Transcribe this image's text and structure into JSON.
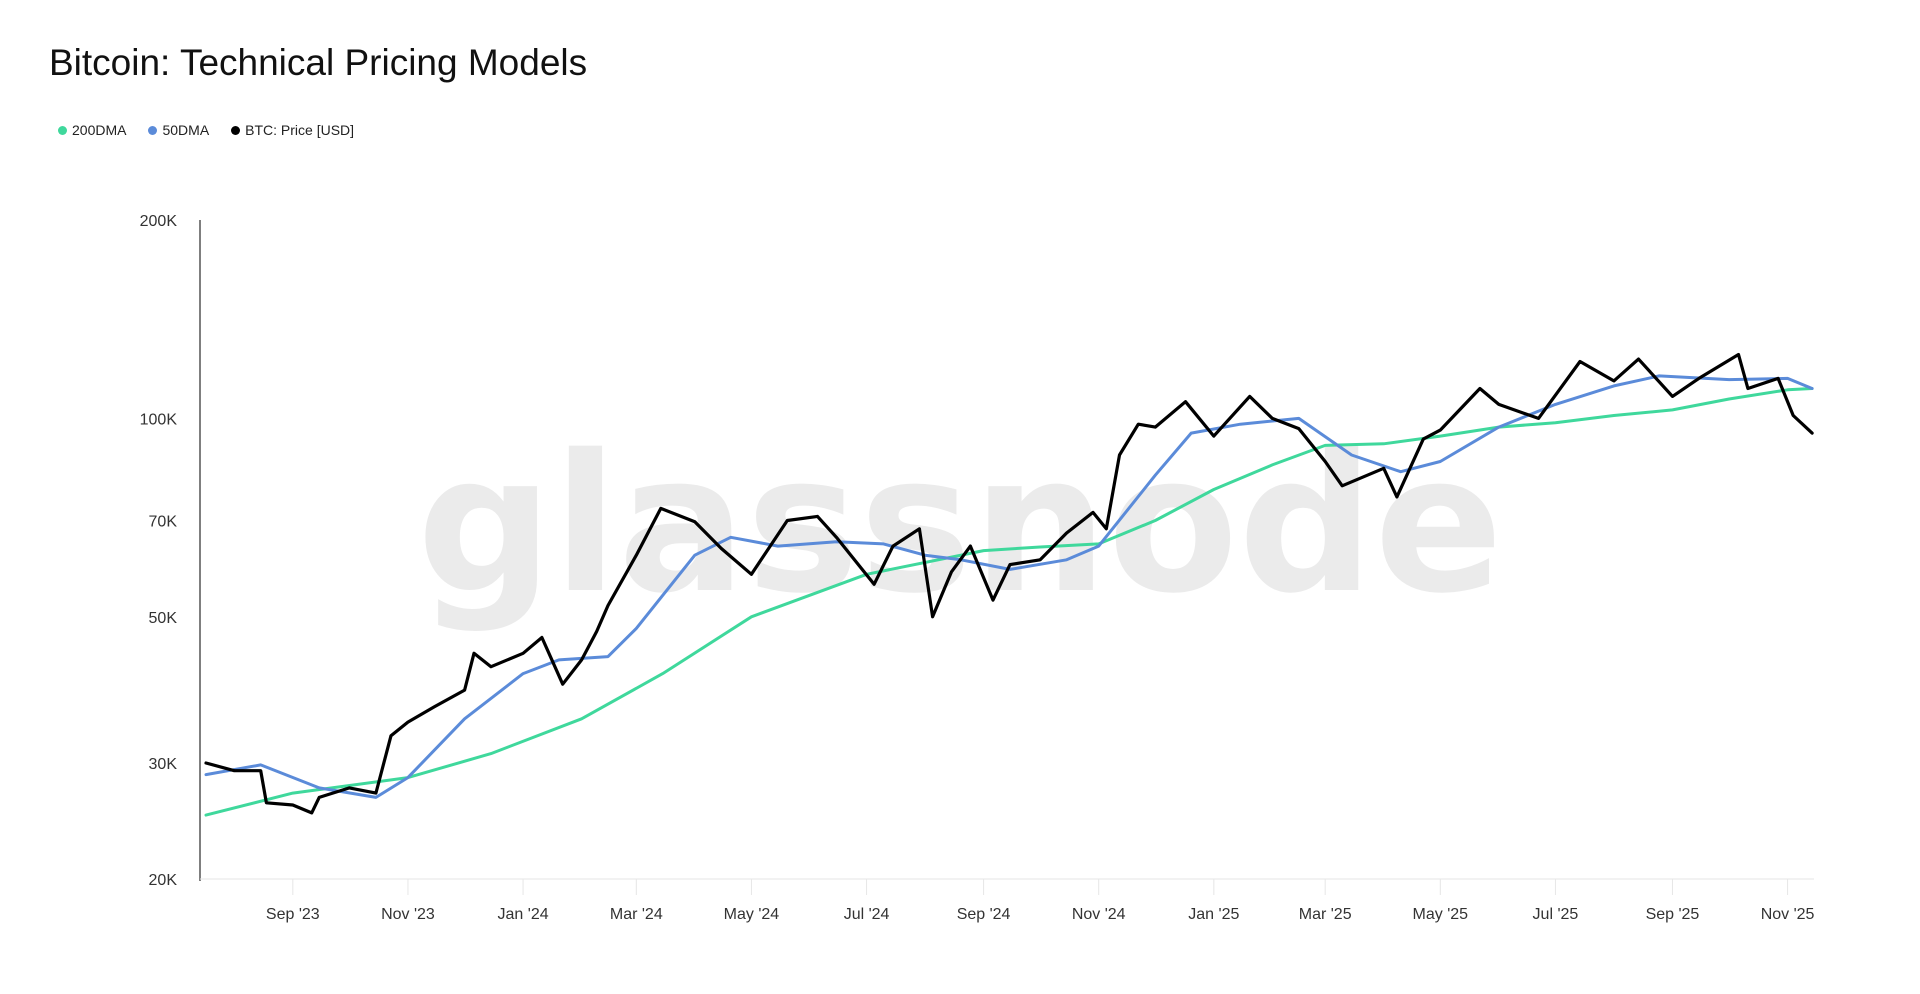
{
  "chart_data": {
    "type": "line",
    "title": "Bitcoin: Technical Pricing Models",
    "watermark": "glassnode",
    "yscale": "log",
    "ylim": [
      20000,
      200000
    ],
    "xlim": [
      "2023-07-17",
      "2025-11-15"
    ],
    "grid": false,
    "legend_placement": "top-left",
    "y_ticks": [
      {
        "value": 200000,
        "label": "200K"
      },
      {
        "value": 100000,
        "label": "100K"
      },
      {
        "value": 70000,
        "label": "70K"
      },
      {
        "value": 50000,
        "label": "50K"
      },
      {
        "value": 30000,
        "label": "30K"
      },
      {
        "value": 20000,
        "label": "20K"
      }
    ],
    "x_ticks": [
      {
        "date": "2023-09-01",
        "label": "Sep '23"
      },
      {
        "date": "2023-11-01",
        "label": "Nov '23"
      },
      {
        "date": "2024-01-01",
        "label": "Jan '24"
      },
      {
        "date": "2024-03-01",
        "label": "Mar '24"
      },
      {
        "date": "2024-05-01",
        "label": "May '24"
      },
      {
        "date": "2024-07-01",
        "label": "Jul '24"
      },
      {
        "date": "2024-09-01",
        "label": "Sep '24"
      },
      {
        "date": "2024-11-01",
        "label": "Nov '24"
      },
      {
        "date": "2025-01-01",
        "label": "Jan '25"
      },
      {
        "date": "2025-03-01",
        "label": "Mar '25"
      },
      {
        "date": "2025-05-01",
        "label": "May '25"
      },
      {
        "date": "2025-07-01",
        "label": "Jul '25"
      },
      {
        "date": "2025-09-01",
        "label": "Sep '25"
      },
      {
        "date": "2025-11-01",
        "label": "Nov '25"
      }
    ],
    "series": [
      {
        "name": "200DMA",
        "color": "#3fd89c",
        "points": [
          [
            "2023-07-17",
            25000
          ],
          [
            "2023-09-01",
            27000
          ],
          [
            "2023-11-01",
            28500
          ],
          [
            "2023-12-15",
            31000
          ],
          [
            "2024-02-01",
            35000
          ],
          [
            "2024-03-15",
            41000
          ],
          [
            "2024-05-01",
            50000
          ],
          [
            "2024-07-01",
            58000
          ],
          [
            "2024-09-01",
            63000
          ],
          [
            "2024-10-01",
            63800
          ],
          [
            "2024-11-01",
            64500
          ],
          [
            "2024-12-01",
            70000
          ],
          [
            "2025-01-01",
            78000
          ],
          [
            "2025-02-01",
            85000
          ],
          [
            "2025-03-01",
            91000
          ],
          [
            "2025-04-01",
            91500
          ],
          [
            "2025-05-01",
            94000
          ],
          [
            "2025-06-01",
            97000
          ],
          [
            "2025-07-01",
            98500
          ],
          [
            "2025-08-01",
            101000
          ],
          [
            "2025-09-01",
            103000
          ],
          [
            "2025-10-01",
            107000
          ],
          [
            "2025-11-01",
            110500
          ],
          [
            "2025-11-14",
            111000
          ]
        ]
      },
      {
        "name": "50DMA",
        "color": "#5b8bd9",
        "points": [
          [
            "2023-07-17",
            28800
          ],
          [
            "2023-08-15",
            29800
          ],
          [
            "2023-09-15",
            27500
          ],
          [
            "2023-10-15",
            26600
          ],
          [
            "2023-11-01",
            28500
          ],
          [
            "2023-12-01",
            35000
          ],
          [
            "2024-01-01",
            41000
          ],
          [
            "2024-01-20",
            43000
          ],
          [
            "2024-02-15",
            43500
          ],
          [
            "2024-03-01",
            48000
          ],
          [
            "2024-04-01",
            62000
          ],
          [
            "2024-04-20",
            66000
          ],
          [
            "2024-05-15",
            64000
          ],
          [
            "2024-06-15",
            65000
          ],
          [
            "2024-07-10",
            64500
          ],
          [
            "2024-08-01",
            62000
          ],
          [
            "2024-08-20",
            61000
          ],
          [
            "2024-09-15",
            59000
          ],
          [
            "2024-10-15",
            61000
          ],
          [
            "2024-11-01",
            64000
          ],
          [
            "2024-12-01",
            82000
          ],
          [
            "2024-12-20",
            95000
          ],
          [
            "2025-01-15",
            98000
          ],
          [
            "2025-02-15",
            100000
          ],
          [
            "2025-03-15",
            88000
          ],
          [
            "2025-04-10",
            83000
          ],
          [
            "2025-05-01",
            86000
          ],
          [
            "2025-06-01",
            97000
          ],
          [
            "2025-07-01",
            105000
          ],
          [
            "2025-08-01",
            112000
          ],
          [
            "2025-08-25",
            116000
          ],
          [
            "2025-10-01",
            114500
          ],
          [
            "2025-11-01",
            115000
          ],
          [
            "2025-11-14",
            111000
          ]
        ]
      },
      {
        "name": "BTC: Price [USD]",
        "color": "#000000",
        "points": [
          [
            "2023-07-17",
            30000
          ],
          [
            "2023-08-01",
            29200
          ],
          [
            "2023-08-15",
            29200
          ],
          [
            "2023-08-18",
            26100
          ],
          [
            "2023-09-01",
            25900
          ],
          [
            "2023-09-11",
            25200
          ],
          [
            "2023-09-15",
            26600
          ],
          [
            "2023-10-01",
            27500
          ],
          [
            "2023-10-15",
            27000
          ],
          [
            "2023-10-23",
            33000
          ],
          [
            "2023-11-01",
            34600
          ],
          [
            "2023-11-15",
            36500
          ],
          [
            "2023-12-01",
            38700
          ],
          [
            "2023-12-06",
            44000
          ],
          [
            "2023-12-15",
            42000
          ],
          [
            "2024-01-01",
            44000
          ],
          [
            "2024-01-11",
            46500
          ],
          [
            "2024-01-22",
            39500
          ],
          [
            "2024-02-01",
            43000
          ],
          [
            "2024-02-09",
            47500
          ],
          [
            "2024-02-15",
            52000
          ],
          [
            "2024-03-01",
            62000
          ],
          [
            "2024-03-14",
            73000
          ],
          [
            "2024-04-01",
            69700
          ],
          [
            "2024-04-15",
            63500
          ],
          [
            "2024-05-01",
            58000
          ],
          [
            "2024-05-20",
            70000
          ],
          [
            "2024-06-05",
            71000
          ],
          [
            "2024-06-15",
            66000
          ],
          [
            "2024-07-05",
            56000
          ],
          [
            "2024-07-15",
            64000
          ],
          [
            "2024-07-29",
            68000
          ],
          [
            "2024-08-05",
            50000
          ],
          [
            "2024-08-15",
            58500
          ],
          [
            "2024-08-25",
            64000
          ],
          [
            "2024-09-06",
            53000
          ],
          [
            "2024-09-15",
            60000
          ],
          [
            "2024-10-01",
            61000
          ],
          [
            "2024-10-15",
            67000
          ],
          [
            "2024-10-29",
            72000
          ],
          [
            "2024-11-05",
            68000
          ],
          [
            "2024-11-12",
            88000
          ],
          [
            "2024-11-22",
            98000
          ],
          [
            "2024-12-01",
            97000
          ],
          [
            "2024-12-17",
            106000
          ],
          [
            "2025-01-01",
            94000
          ],
          [
            "2025-01-20",
            108000
          ],
          [
            "2025-02-01",
            100000
          ],
          [
            "2025-02-15",
            96500
          ],
          [
            "2025-03-01",
            86000
          ],
          [
            "2025-03-10",
            79000
          ],
          [
            "2025-04-01",
            84000
          ],
          [
            "2025-04-08",
            76000
          ],
          [
            "2025-04-22",
            93000
          ],
          [
            "2025-05-01",
            96000
          ],
          [
            "2025-05-22",
            111000
          ],
          [
            "2025-06-01",
            105000
          ],
          [
            "2025-06-22",
            100000
          ],
          [
            "2025-07-14",
            122000
          ],
          [
            "2025-08-01",
            114000
          ],
          [
            "2025-08-14",
            123000
          ],
          [
            "2025-09-01",
            108000
          ],
          [
            "2025-09-15",
            115000
          ],
          [
            "2025-10-06",
            125000
          ],
          [
            "2025-10-11",
            111000
          ],
          [
            "2025-10-27",
            115000
          ],
          [
            "2025-11-04",
            101000
          ],
          [
            "2025-11-14",
            95000
          ]
        ]
      }
    ]
  }
}
